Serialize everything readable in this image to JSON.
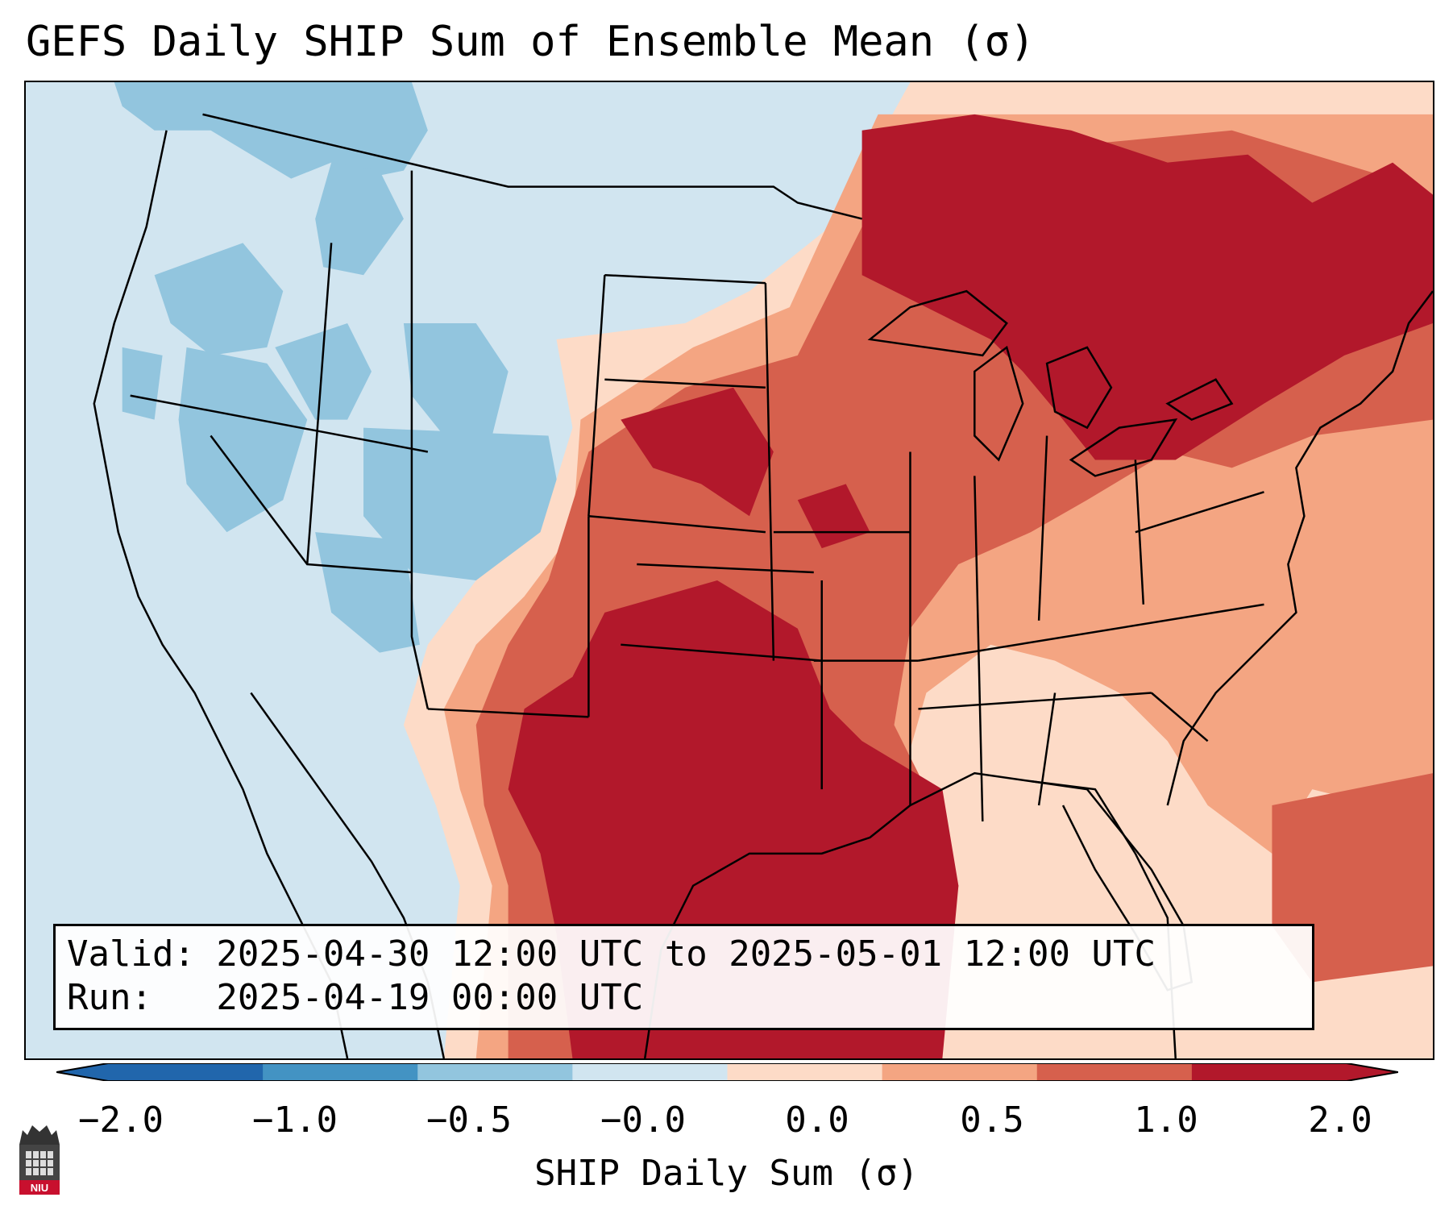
{
  "title": "GEFS Daily SHIP Sum of Ensemble Mean (σ)",
  "info": {
    "valid_line": "Valid: 2025-04-30 12:00 UTC to 2025-05-01 12:00 UTC",
    "run_line": "Run:   2025-04-19 00:00 UTC"
  },
  "colorbar": {
    "label": "SHIP Daily Sum (σ)",
    "ticks": [
      "−2.0",
      "−1.0",
      "−0.5",
      "−0.0",
      "0.0",
      "0.5",
      "1.0",
      "2.0"
    ],
    "colors": [
      "#2166ac",
      "#4393c3",
      "#92c5de",
      "#d1e5f0",
      "#fddbc7",
      "#f4a582",
      "#d6604d",
      "#b2182b"
    ]
  },
  "logo": {
    "text": "NIU",
    "icon": "niu-logo-icon"
  }
}
